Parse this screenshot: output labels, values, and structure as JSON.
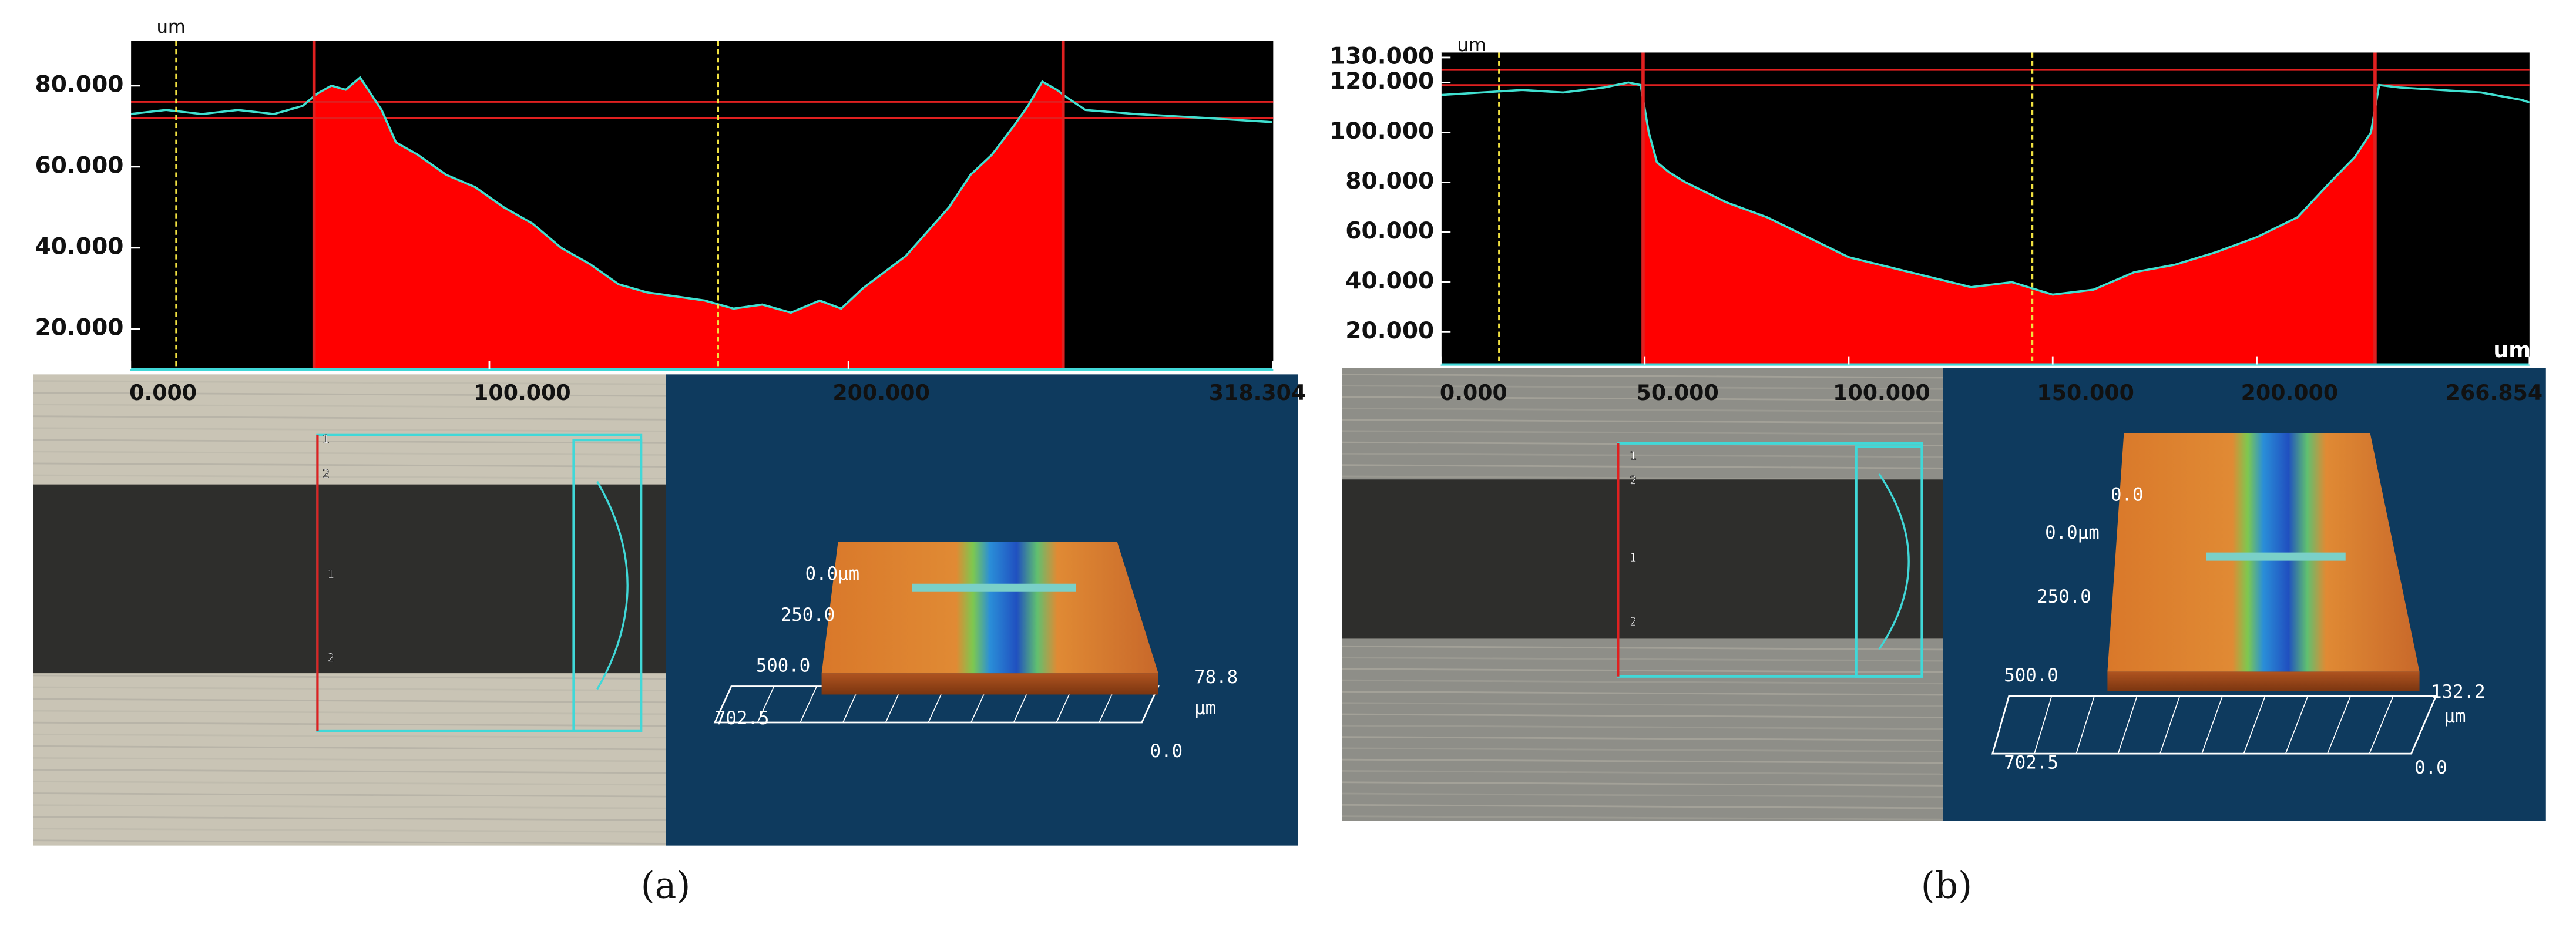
{
  "chart_data": [
    {
      "type": "area",
      "label": "(a)",
      "y_unit": "um",
      "x": [
        0,
        10,
        20,
        30,
        40,
        48,
        52,
        56,
        60,
        64,
        67,
        70,
        74,
        80,
        88,
        96,
        104,
        112,
        120,
        128,
        136,
        144,
        152,
        160,
        168,
        176,
        184,
        192,
        198,
        204,
        210,
        216,
        222,
        228,
        234,
        240,
        246,
        250,
        254,
        258,
        261,
        266,
        280,
        300,
        318
      ],
      "values": [
        73,
        74,
        73,
        74,
        73,
        75,
        78,
        80,
        79,
        82,
        78,
        74,
        66,
        63,
        58,
        55,
        50,
        46,
        40,
        36,
        31,
        29,
        28,
        27,
        25,
        26,
        24,
        27,
        25,
        30,
        34,
        38,
        44,
        50,
        58,
        63,
        70,
        75,
        81,
        79,
        77,
        74,
        73,
        72,
        71
      ],
      "color": "#40e0d0",
      "fill": "#ff0000",
      "cursor_colors": {
        "red": "#e02020",
        "yellow": "#f0e040"
      },
      "xlim": [
        0,
        318.304
      ],
      "ylim": [
        10,
        91
      ],
      "xticks": [
        {
          "value": 0,
          "label": "0.000"
        },
        {
          "value": 100,
          "label": "100.000"
        },
        {
          "value": 200,
          "label": "200.000"
        },
        {
          "value": 318.304,
          "label": "318.304"
        }
      ],
      "yticks": [
        {
          "value": 20,
          "label": "20.000"
        },
        {
          "value": 40,
          "label": "40.000"
        },
        {
          "value": 60,
          "label": "60.000"
        },
        {
          "value": 80,
          "label": "80.000"
        }
      ],
      "cursors": {
        "red": [
          51.2,
          259.8
        ],
        "yellow": [
          12.8,
          163.7
        ]
      },
      "hlines": [
        76,
        72
      ],
      "image_markers": [
        "1",
        "2",
        "1",
        "2"
      ],
      "render_labels": [
        "0.0μm",
        "250.0",
        "500.0",
        "702.5",
        "78.8",
        "μm",
        "0.0"
      ]
    },
    {
      "type": "area",
      "label": "(b)",
      "y_unit": "um",
      "x_unit": "um",
      "x": [
        0,
        10,
        20,
        30,
        40,
        46,
        49,
        51,
        53,
        56,
        60,
        65,
        70,
        80,
        90,
        100,
        110,
        120,
        130,
        140,
        150,
        160,
        170,
        180,
        190,
        200,
        210,
        218,
        224,
        228,
        230,
        235,
        245,
        255,
        265,
        266.854
      ],
      "values": [
        115,
        116,
        117,
        116,
        118,
        120,
        119,
        100,
        88,
        84,
        80,
        76,
        72,
        66,
        58,
        50,
        46,
        42,
        38,
        40,
        35,
        37,
        44,
        47,
        52,
        58,
        66,
        80,
        90,
        100,
        119,
        118,
        117,
        116,
        113,
        112
      ],
      "color": "#40e0d0",
      "fill": "#ff0000",
      "cursor_colors": {
        "red": "#e02020",
        "yellow": "#f0e040"
      },
      "xlim": [
        0,
        266.854
      ],
      "ylim": [
        7,
        132
      ],
      "xticks": [
        {
          "value": 0,
          "label": "0.000"
        },
        {
          "value": 50,
          "label": "50.000"
        },
        {
          "value": 100,
          "label": "100.000"
        },
        {
          "value": 150,
          "label": "150.000"
        },
        {
          "value": 200,
          "label": "200.000"
        },
        {
          "value": 266.854,
          "label": "266.854"
        }
      ],
      "yticks": [
        {
          "value": 20,
          "label": "20.000"
        },
        {
          "value": 40,
          "label": "40.000"
        },
        {
          "value": 60,
          "label": "60.000"
        },
        {
          "value": 80,
          "label": "80.000"
        },
        {
          "value": 100,
          "label": "100.000"
        },
        {
          "value": 120,
          "label": "120.000"
        },
        {
          "value": 130,
          "label": "130.000"
        }
      ],
      "cursors": {
        "red": [
          49.6,
          229
        ],
        "yellow": [
          14.3,
          145
        ]
      },
      "hlines": [
        125,
        119
      ],
      "image_markers": [
        "1",
        "2",
        "1",
        "2"
      ],
      "render_labels": [
        "0.0",
        "0.0μm",
        "250.0",
        "500.0",
        "702.5",
        "132.2",
        "μm",
        "0.0"
      ]
    }
  ]
}
